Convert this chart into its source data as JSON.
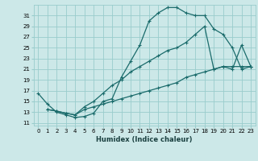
{
  "xlabel": "Humidex (Indice chaleur)",
  "bg_color": "#cce8e8",
  "grid_color": "#99cccc",
  "line_color": "#1a6b6b",
  "xlim": [
    -0.5,
    23.5
  ],
  "ylim": [
    10.5,
    33
  ],
  "xticks": [
    0,
    1,
    2,
    3,
    4,
    5,
    6,
    7,
    8,
    9,
    10,
    11,
    12,
    13,
    14,
    15,
    16,
    17,
    18,
    19,
    20,
    21,
    22,
    23
  ],
  "yticks": [
    11,
    13,
    15,
    17,
    19,
    21,
    23,
    25,
    27,
    29,
    31
  ],
  "line1_x": [
    0,
    1,
    2,
    3,
    4,
    5,
    6,
    7,
    8,
    9,
    10,
    11,
    12,
    13,
    14,
    15,
    16,
    17,
    18,
    19,
    20,
    21,
    22,
    23
  ],
  "line1_y": [
    16.5,
    14.5,
    13.0,
    12.5,
    12.0,
    12.2,
    12.8,
    15.0,
    15.5,
    19.5,
    22.5,
    25.5,
    30.0,
    31.5,
    32.5,
    32.5,
    31.5,
    31.0,
    31.0,
    28.5,
    27.5,
    25.0,
    21.0,
    21.5
  ],
  "line2_x": [
    1,
    2,
    3,
    4,
    5,
    6,
    7,
    8,
    9,
    10,
    11,
    12,
    13,
    14,
    15,
    16,
    17,
    18,
    19,
    20,
    21,
    22,
    23
  ],
  "line2_y": [
    13.5,
    13.2,
    12.8,
    12.5,
    14.0,
    15.0,
    16.5,
    18.0,
    19.0,
    20.5,
    21.5,
    22.5,
    23.5,
    24.5,
    25.0,
    26.0,
    27.5,
    29.0,
    21.0,
    21.5,
    21.0,
    25.5,
    21.5
  ],
  "line3_x": [
    1,
    2,
    3,
    4,
    5,
    6,
    7,
    8,
    9,
    10,
    11,
    12,
    13,
    14,
    15,
    16,
    17,
    18,
    19,
    20,
    21,
    22,
    23
  ],
  "line3_y": [
    13.5,
    13.2,
    12.8,
    12.5,
    13.5,
    14.0,
    14.5,
    15.0,
    15.5,
    16.0,
    16.5,
    17.0,
    17.5,
    18.0,
    18.5,
    19.5,
    20.0,
    20.5,
    21.0,
    21.5,
    21.5,
    21.5,
    21.5
  ],
  "xlabel_fontsize": 6,
  "tick_fontsize": 5
}
